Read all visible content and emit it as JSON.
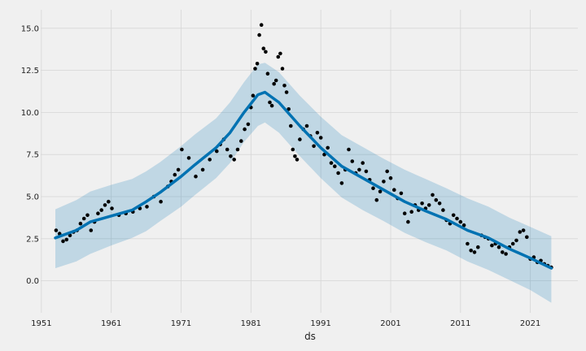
{
  "chart_data": {
    "type": "scatter",
    "title": "",
    "xlabel": "ds",
    "ylabel": "",
    "xlim": [
      1950.9,
      2027.8
    ],
    "ylim": [
      -1.9,
      16.1
    ],
    "grid": true,
    "x_ticks": [
      1951,
      1961,
      1971,
      1981,
      1991,
      2001,
      2011,
      2021
    ],
    "x_tick_labels": [
      "1951",
      "1961",
      "1971",
      "1981",
      "1991",
      "2001",
      "2011",
      "2021"
    ],
    "y_ticks": [
      0.0,
      2.5,
      5.0,
      7.5,
      10.0,
      12.5,
      15.0
    ],
    "y_tick_labels": [
      "0.0",
      "2.5",
      "5.0",
      "7.5",
      "10.0",
      "12.5",
      "15.0"
    ],
    "colors": {
      "points": "#000000",
      "forecast": "#0072B2",
      "interval": "#0072B2",
      "background": "#f0f0f0",
      "grid": "#d6d6d6"
    },
    "series": [
      {
        "kind": "forecast",
        "x": [
          1953.0,
          1956.0,
          1958.0,
          1961.0,
          1964.0,
          1966.0,
          1968.0,
          1971.0,
          1973.0,
          1976.0,
          1978.0,
          1980.0,
          1982.0,
          1983.0,
          1985.0,
          1988.0,
          1991.0,
          1994.0,
          1997.0,
          2000.0,
          2003.0,
          2006.0,
          2009.0,
          2012.0,
          2015.0,
          2018.0,
          2021.0,
          2024.0
        ],
        "yhat": [
          2.55,
          3.0,
          3.5,
          3.85,
          4.2,
          4.7,
          5.25,
          6.2,
          6.9,
          7.9,
          8.8,
          10.0,
          11.05,
          11.2,
          10.6,
          9.2,
          7.9,
          6.8,
          6.1,
          5.4,
          4.7,
          4.15,
          3.65,
          3.0,
          2.55,
          1.9,
          1.35,
          0.75
        ],
        "lower": [
          0.75,
          1.15,
          1.6,
          2.1,
          2.55,
          2.95,
          3.55,
          4.4,
          5.1,
          6.1,
          7.0,
          8.25,
          9.2,
          9.4,
          8.8,
          7.4,
          6.1,
          4.95,
          4.2,
          3.55,
          2.85,
          2.3,
          1.8,
          1.15,
          0.65,
          0.05,
          -0.55,
          -1.3
        ],
        "upper": [
          4.25,
          4.8,
          5.3,
          5.7,
          6.05,
          6.5,
          7.05,
          8.0,
          8.7,
          9.65,
          10.6,
          11.8,
          12.85,
          12.95,
          12.4,
          11.0,
          9.75,
          8.65,
          7.95,
          7.25,
          6.6,
          6.05,
          5.5,
          4.9,
          4.4,
          3.75,
          3.2,
          2.65
        ]
      },
      {
        "kind": "observed",
        "x": [
          1953.1,
          1953.6,
          1954.1,
          1954.6,
          1955.1,
          1955.6,
          1956.1,
          1956.6,
          1957.1,
          1957.6,
          1958.1,
          1958.6,
          1959.1,
          1959.6,
          1960.1,
          1960.6,
          1961.1,
          1962.1,
          1963.1,
          1964.1,
          1965.1,
          1966.1,
          1967.1,
          1968.1,
          1969.1,
          1969.6,
          1970.1,
          1970.6,
          1971.1,
          1972.1,
          1973.1,
          1974.1,
          1975.1,
          1976.1,
          1976.6,
          1977.1,
          1977.6,
          1978.1,
          1978.6,
          1979.1,
          1979.6,
          1980.1,
          1980.6,
          1981.0,
          1981.3,
          1981.6,
          1981.9,
          1982.2,
          1982.5,
          1982.8,
          1983.1,
          1983.4,
          1983.7,
          1984.0,
          1984.3,
          1984.6,
          1984.9,
          1985.2,
          1985.5,
          1985.8,
          1986.1,
          1986.4,
          1986.7,
          1987.0,
          1987.3,
          1987.6,
          1988.0,
          1988.5,
          1989.0,
          1989.5,
          1990.0,
          1990.5,
          1991.0,
          1991.5,
          1992.0,
          1992.5,
          1993.0,
          1993.5,
          1994.0,
          1994.5,
          1995.0,
          1995.5,
          1996.0,
          1996.5,
          1997.0,
          1997.5,
          1998.0,
          1998.5,
          1999.0,
          1999.5,
          2000.0,
          2000.5,
          2001.0,
          2001.5,
          2002.0,
          2002.5,
          2003.0,
          2003.5,
          2004.0,
          2004.5,
          2005.0,
          2005.5,
          2006.0,
          2006.5,
          2007.0,
          2007.5,
          2008.0,
          2008.5,
          2009.0,
          2009.5,
          2010.0,
          2010.5,
          2011.0,
          2011.5,
          2012.0,
          2012.5,
          2013.0,
          2013.5,
          2014.0,
          2014.5,
          2015.0,
          2015.5,
          2016.0,
          2016.5,
          2017.0,
          2017.5,
          2018.0,
          2018.5,
          2019.0,
          2019.5,
          2020.0,
          2020.5,
          2021.0,
          2021.5,
          2022.0,
          2022.5,
          2023.0,
          2023.5,
          2024.0
        ],
        "y": [
          3.0,
          2.8,
          2.35,
          2.45,
          2.7,
          2.9,
          3.0,
          3.4,
          3.7,
          3.9,
          3.0,
          3.5,
          4.0,
          4.2,
          4.5,
          4.7,
          4.3,
          3.9,
          4.0,
          4.1,
          4.3,
          4.4,
          5.0,
          4.7,
          5.6,
          5.9,
          6.3,
          6.6,
          7.8,
          7.3,
          6.2,
          6.6,
          7.2,
          7.7,
          8.1,
          8.4,
          7.8,
          7.4,
          7.2,
          7.8,
          8.3,
          9.0,
          9.3,
          10.3,
          11.0,
          12.6,
          12.9,
          14.6,
          15.2,
          13.8,
          13.6,
          12.3,
          10.6,
          10.4,
          11.7,
          11.9,
          13.3,
          13.5,
          12.6,
          11.6,
          11.2,
          10.2,
          9.2,
          7.8,
          7.4,
          7.2,
          8.4,
          9.0,
          9.2,
          8.6,
          8.0,
          8.8,
          8.5,
          7.5,
          7.9,
          7.0,
          6.8,
          6.4,
          5.8,
          6.6,
          7.8,
          7.1,
          6.4,
          6.6,
          7.0,
          6.5,
          6.0,
          5.5,
          4.8,
          5.3,
          5.9,
          6.5,
          6.1,
          5.4,
          4.9,
          5.2,
          4.0,
          3.5,
          4.1,
          4.5,
          4.2,
          4.6,
          4.3,
          4.5,
          5.1,
          4.8,
          4.6,
          4.2,
          3.6,
          3.4,
          3.9,
          3.7,
          3.5,
          3.3,
          2.2,
          1.8,
          1.7,
          2.0,
          2.7,
          2.6,
          2.5,
          2.1,
          2.2,
          2.0,
          1.7,
          1.6,
          2.0,
          2.2,
          2.4,
          2.9,
          3.0,
          2.6,
          1.3,
          1.4,
          1.1,
          1.2,
          1.0,
          0.9,
          0.8
        ]
      }
    ]
  }
}
